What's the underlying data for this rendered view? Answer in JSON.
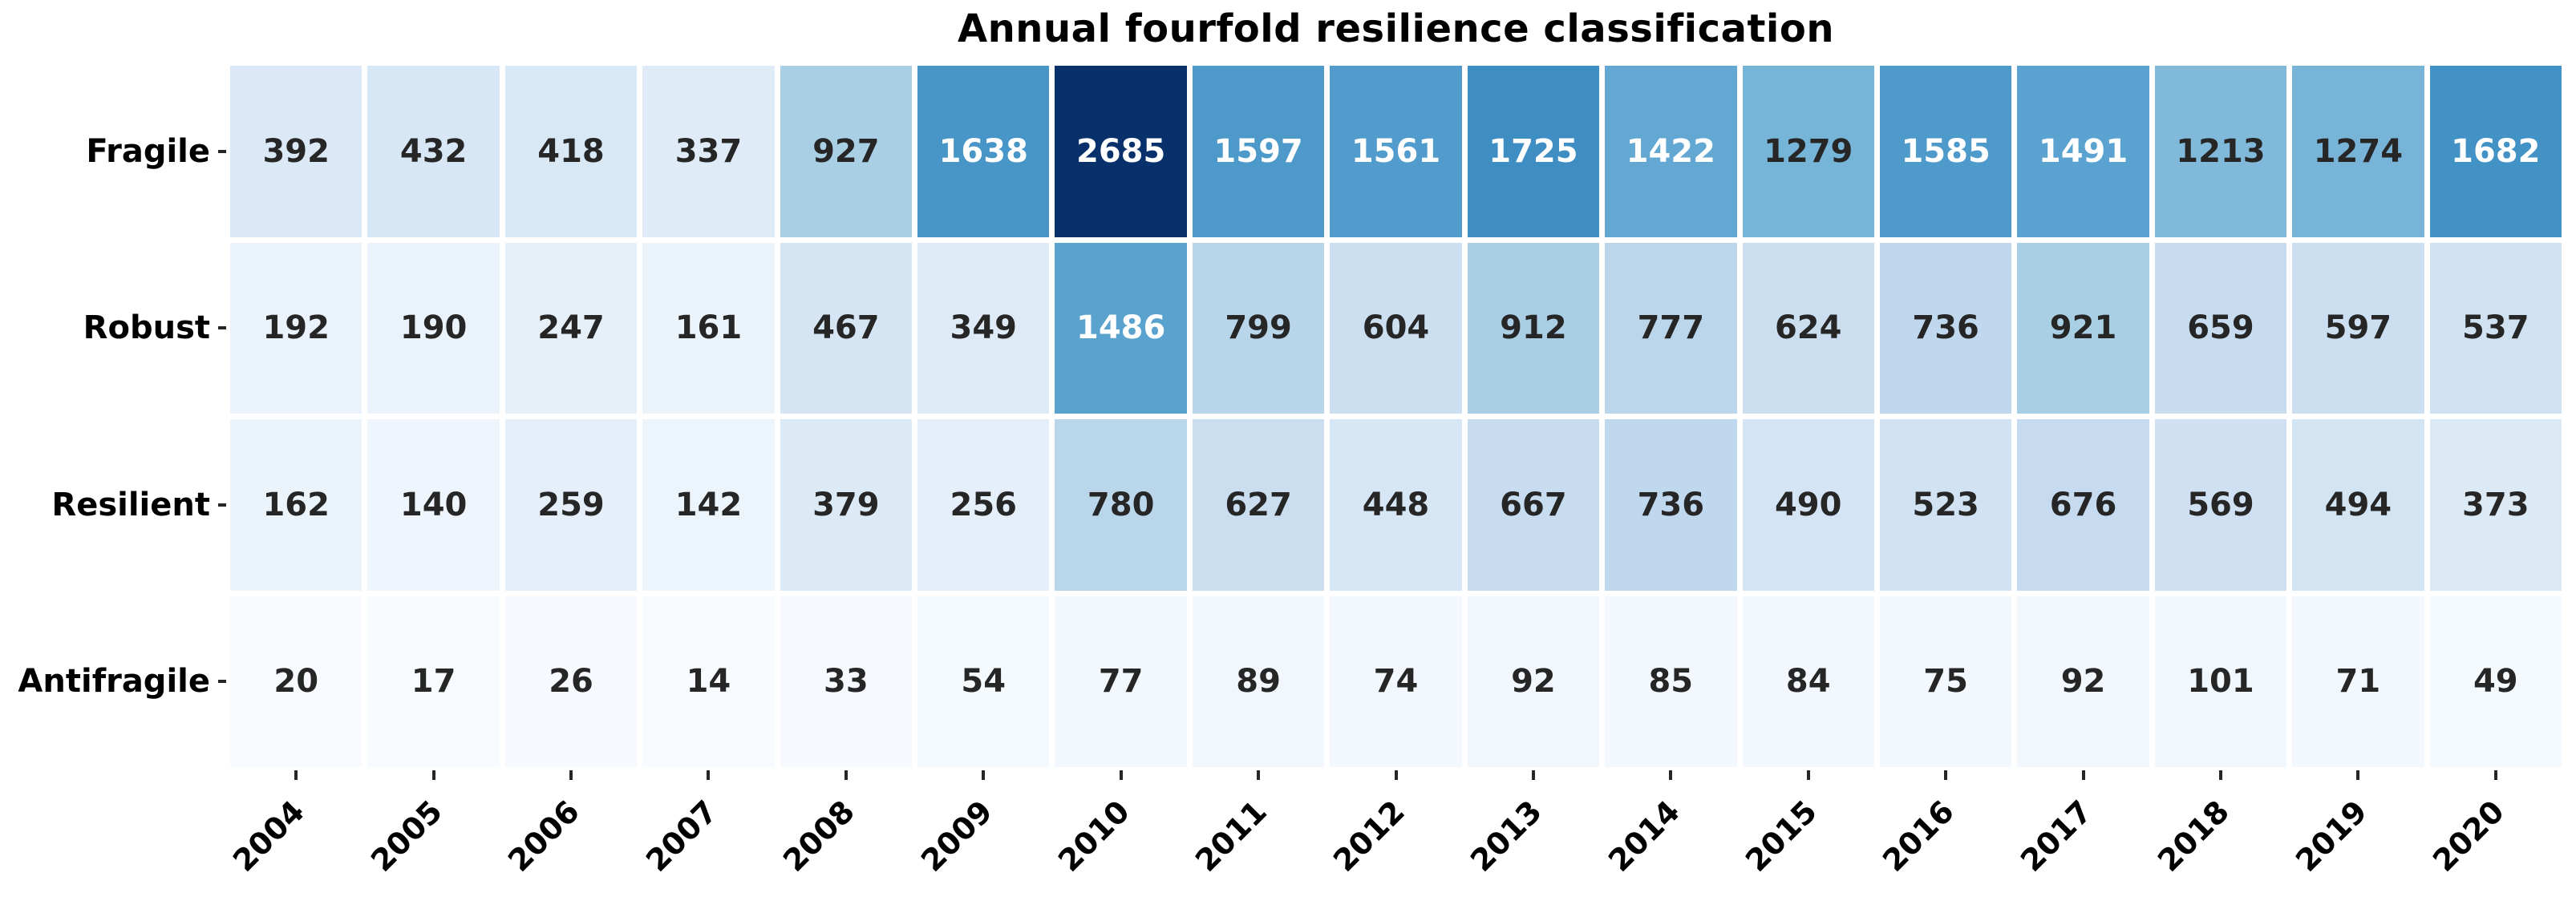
{
  "chart_data": {
    "type": "heatmap",
    "title": "Annual fourfold resilience classification",
    "categories": [
      "2004",
      "2005",
      "2006",
      "2007",
      "2008",
      "2009",
      "2010",
      "2011",
      "2012",
      "2013",
      "2014",
      "2015",
      "2016",
      "2017",
      "2018",
      "2019",
      "2020"
    ],
    "rows": [
      "Fragile",
      "Robust",
      "Resilient",
      "Antifragile"
    ],
    "series": [
      {
        "name": "Fragile",
        "values": [
          392,
          432,
          418,
          337,
          927,
          1638,
          2685,
          1597,
          1561,
          1725,
          1422,
          1279,
          1585,
          1491,
          1213,
          1274,
          1682
        ]
      },
      {
        "name": "Robust",
        "values": [
          192,
          190,
          247,
          161,
          467,
          349,
          1486,
          799,
          604,
          912,
          777,
          624,
          736,
          921,
          659,
          597,
          537
        ]
      },
      {
        "name": "Resilient",
        "values": [
          162,
          140,
          259,
          142,
          379,
          256,
          780,
          627,
          448,
          667,
          736,
          490,
          523,
          676,
          569,
          494,
          373
        ]
      },
      {
        "name": "Antifragile",
        "values": [
          20,
          17,
          26,
          14,
          33,
          54,
          77,
          89,
          74,
          92,
          85,
          84,
          75,
          92,
          101,
          71,
          49
        ]
      }
    ],
    "vmin": 14,
    "vmax": 2685,
    "colormap": "Blues",
    "colormap_stops": [
      "#f7fbff",
      "#deebf7",
      "#c6dbef",
      "#9ecae1",
      "#6baed6",
      "#4292c6",
      "#2171b5",
      "#08519c",
      "#08306b"
    ],
    "annotation_color_dark": "#262626",
    "annotation_color_light": "#ffffff",
    "grid_line_color": "#ffffff",
    "legend": "none",
    "xlabel": "",
    "ylabel": ""
  }
}
